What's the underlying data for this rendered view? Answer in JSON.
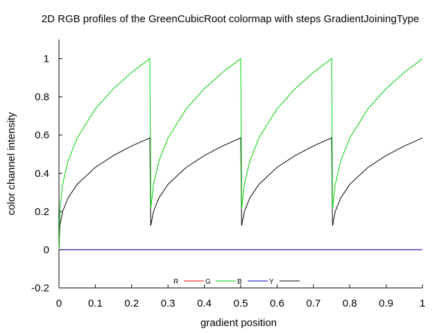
{
  "chart_data": {
    "type": "line",
    "title": "2D RGB profiles of the GreenCubicRoot colormap with steps GradientJoiningType",
    "xlabel": "gradient position",
    "ylabel": "color channel intensity",
    "xlim": [
      0,
      1
    ],
    "ylim": [
      -0.2,
      1.1
    ],
    "x_ticks": [
      "0",
      "0.1",
      "0.2",
      "0.3",
      "0.4",
      "0.5",
      "0.6",
      "0.7",
      "0.8",
      "0.9",
      "1"
    ],
    "y_ticks": [
      "-0.2",
      "0",
      "0.2",
      "0.4",
      "0.6",
      "0.8",
      "1"
    ],
    "grid": false,
    "legend_position": "bottom-center",
    "segments": 4,
    "series": [
      {
        "name": "R",
        "color": "#ff0000",
        "x": [
          0,
          1
        ],
        "y": [
          0,
          0
        ]
      },
      {
        "name": "G",
        "color": "#00cc00",
        "x": [
          0,
          0.0025,
          0.01,
          0.025,
          0.05,
          0.1,
          0.15,
          0.2,
          0.25,
          0.2525,
          0.26,
          0.275,
          0.3,
          0.35,
          0.4,
          0.45,
          0.5,
          0.5025,
          0.51,
          0.525,
          0.55,
          0.6,
          0.65,
          0.7,
          0.75,
          0.7525,
          0.76,
          0.775,
          0.8,
          0.85,
          0.9,
          0.95,
          1
        ],
        "y": [
          0,
          0.215,
          0.342,
          0.464,
          0.585,
          0.737,
          0.843,
          0.928,
          1,
          0.215,
          0.342,
          0.464,
          0.585,
          0.737,
          0.843,
          0.928,
          1,
          0.215,
          0.342,
          0.464,
          0.585,
          0.737,
          0.843,
          0.928,
          1,
          0.215,
          0.342,
          0.464,
          0.585,
          0.737,
          0.843,
          0.928,
          1
        ]
      },
      {
        "name": "B",
        "color": "#0000cc",
        "x": [
          0,
          1
        ],
        "y": [
          0,
          0
        ]
      },
      {
        "name": "Y",
        "color": "#000000",
        "x": [
          0,
          0.0025,
          0.01,
          0.025,
          0.05,
          0.1,
          0.15,
          0.2,
          0.25,
          0.2525,
          0.26,
          0.275,
          0.3,
          0.35,
          0.4,
          0.45,
          0.5,
          0.5025,
          0.51,
          0.525,
          0.55,
          0.6,
          0.65,
          0.7,
          0.75,
          0.7525,
          0.76,
          0.775,
          0.8,
          0.85,
          0.9,
          0.95,
          1
        ],
        "y": [
          0,
          0.126,
          0.2,
          0.271,
          0.342,
          0.431,
          0.493,
          0.543,
          0.585,
          0.126,
          0.2,
          0.271,
          0.342,
          0.431,
          0.493,
          0.543,
          0.585,
          0.126,
          0.2,
          0.271,
          0.342,
          0.431,
          0.493,
          0.543,
          0.585,
          0.126,
          0.2,
          0.271,
          0.342,
          0.431,
          0.493,
          0.543,
          0.585
        ]
      }
    ]
  }
}
